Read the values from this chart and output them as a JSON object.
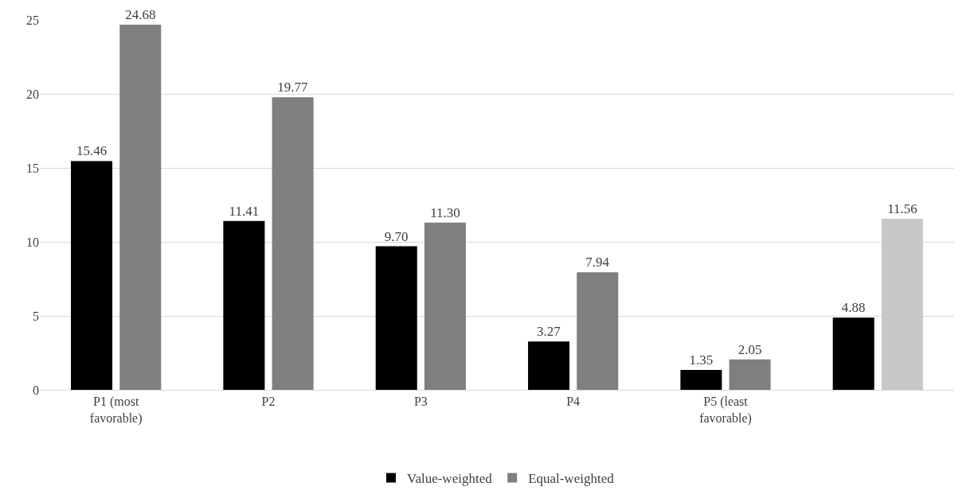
{
  "chart_data": {
    "type": "bar",
    "categories": [
      "P1 (most favorable)",
      "P2",
      "P3",
      "P4",
      "P5 (least favorable)",
      null
    ],
    "series": [
      {
        "name": "Value-weighted",
        "color": "#000000",
        "values": [
          15.46,
          11.41,
          9.7,
          3.27,
          1.35,
          4.88
        ],
        "value_labels": [
          "15.46",
          "11.41",
          "9.70",
          "3.27",
          "1.35",
          "4.88"
        ]
      },
      {
        "name": "Equal-weighted",
        "color": "#7f7f7f",
        "colors": [
          "#7f7f7f",
          "#7f7f7f",
          "#7f7f7f",
          "#7f7f7f",
          "#7f7f7f",
          "#c8c8c8"
        ],
        "values": [
          24.68,
          19.77,
          11.3,
          7.94,
          2.05,
          11.56
        ],
        "value_labels": [
          "24.68",
          "19.77",
          "11.30",
          "7.94",
          "2.05",
          "11.56"
        ]
      }
    ],
    "ylim": [
      0,
      25
    ],
    "yticks": [
      0,
      5,
      10,
      15,
      20,
      25
    ],
    "grid": "y",
    "legend": "bottom"
  }
}
